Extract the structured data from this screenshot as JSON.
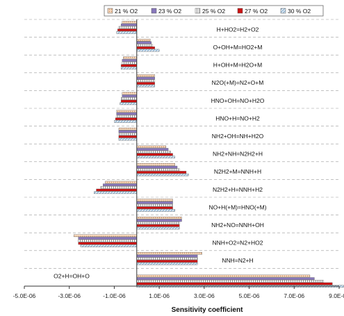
{
  "chart_data": {
    "type": "bar",
    "orientation": "horizontal",
    "xlabel": "Sensitivity coefficient",
    "xlim": [
      -5e-06,
      9e-06
    ],
    "xticks": [
      -5e-06,
      -3e-06,
      -1e-06,
      1e-06,
      3e-06,
      5e-06,
      7e-06,
      9e-06
    ],
    "xtick_labels": [
      "-5.0E-06",
      "-3.0E-06",
      "-1.0E-06",
      "1.0E-06",
      "3.0E-06",
      "5.0E-06",
      "7.0E-06",
      "9.0E-06"
    ],
    "legend_position": "top",
    "categories": [
      "H+HO2=H2+O2",
      "O+OH+M=HO2+M",
      "H+OH+M=H2O+M",
      "N2O(+M)=N2+O+M",
      "HNO+OH=NO+H2O",
      "HNO+H=NO+H2",
      "NH2+OH=NH+H2O",
      "NH2+NH=N2H2+H",
      "N2H2+M=NNH+H",
      "N2H2+H=NNH+H2",
      "NO+H(+M)=HNO(+M)",
      "NH2+NO=NNH+OH",
      "NNH+O2=N2+HO2",
      "NNH=N2+H",
      "O2+H=OH+O"
    ],
    "series": [
      {
        "name": "21 % O2",
        "color": "#f4c7a2",
        "pattern": "dots",
        "values": [
          -6.5e-07,
          6e-07,
          -6e-07,
          8e-07,
          -6.5e-07,
          -9e-07,
          -8e-07,
          1.3e-06,
          1.7e-06,
          -1.4e-06,
          1.6e-06,
          2e-06,
          -2.8e-06,
          2.9e-06,
          7.7e-06
        ]
      },
      {
        "name": "23 % O2",
        "color": "#8877bb",
        "pattern": "solid",
        "values": [
          -7e-07,
          6.5e-07,
          -6.5e-07,
          8e-07,
          -6.5e-07,
          -9e-07,
          -8e-07,
          1.4e-06,
          1.8e-06,
          -1.5e-06,
          1.6e-06,
          2e-06,
          -2.6e-06,
          2.7e-06,
          7.9e-06
        ]
      },
      {
        "name": "25 % O2",
        "color": "#f2f2f2",
        "pattern": "vlines",
        "values": [
          -8e-07,
          7e-07,
          -6.5e-07,
          8e-07,
          -7e-07,
          -9e-07,
          -8e-07,
          1.5e-06,
          1.9e-06,
          -1.6e-06,
          1.6e-06,
          1.9e-06,
          -2.6e-06,
          2.7e-06,
          8.3e-06
        ]
      },
      {
        "name": "27 % O2",
        "color": "#cc1111",
        "pattern": "solid",
        "values": [
          -8.5e-07,
          8e-07,
          -7e-07,
          8e-07,
          -7e-07,
          -9.5e-07,
          -8e-07,
          1.6e-06,
          2.2e-06,
          -1.8e-06,
          1.6e-06,
          1.9e-06,
          -2.6e-06,
          2.7e-06,
          8.7e-06
        ]
      },
      {
        "name": "30 % O2",
        "color": "#7fa7c8",
        "pattern": "diag",
        "values": [
          -9e-07,
          1e-06,
          -7e-07,
          8e-07,
          -7.5e-07,
          -1e-06,
          -8e-07,
          1.7e-06,
          2.3e-06,
          -1.9e-06,
          1.7e-06,
          1.9e-06,
          -2.5e-06,
          2.7e-06,
          9.2e-06
        ]
      }
    ]
  }
}
